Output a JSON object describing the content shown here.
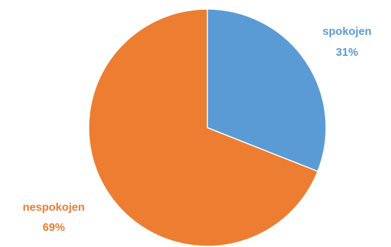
{
  "chart_data": {
    "type": "pie",
    "title": "",
    "start_angle_deg": 0,
    "direction": "clockwise",
    "slices": [
      {
        "category": "spokojen",
        "value": 31,
        "percent_label": "31%",
        "color": "#5B9BD5"
      },
      {
        "category": "nespokojen",
        "value": 69,
        "percent_label": "69%",
        "color": "#ED7D31"
      }
    ]
  }
}
